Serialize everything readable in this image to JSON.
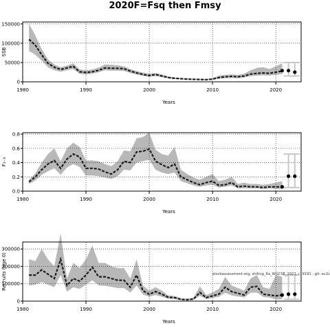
{
  "figure_title": "2020F=Fsq then Fmsy",
  "colors": {
    "band": "#b8b8b8",
    "line": "#1a1a1a",
    "grid": "#222222",
    "forecast_bar": "#c8c8c8"
  },
  "chart_data": [
    {
      "type": "line",
      "ylabel": "SSB",
      "xlabel": "Years",
      "xlim": [
        1980,
        2024
      ],
      "ylim": [
        0,
        155000
      ],
      "xticks": [
        1980,
        1990,
        2000,
        2010,
        2020
      ],
      "yticks": [
        0,
        50000,
        100000,
        150000
      ],
      "grid": true,
      "x": [
        1981,
        1982,
        1983,
        1984,
        1985,
        1986,
        1987,
        1988,
        1989,
        1990,
        1991,
        1992,
        1993,
        1994,
        1995,
        1996,
        1997,
        1998,
        1999,
        2000,
        2001,
        2002,
        2003,
        2004,
        2005,
        2006,
        2007,
        2008,
        2009,
        2010,
        2011,
        2012,
        2013,
        2014,
        2015,
        2016,
        2017,
        2018,
        2019,
        2020,
        2021
      ],
      "series": [
        {
          "role": "median",
          "values": [
            110000,
            95000,
            70000,
            48000,
            38000,
            32000,
            36000,
            40000,
            26000,
            24000,
            26000,
            30000,
            36000,
            35000,
            35000,
            34000,
            28000,
            23000,
            19000,
            16000,
            19000,
            15000,
            11000,
            9000,
            8000,
            7000,
            6500,
            6000,
            5500,
            7000,
            11000,
            13000,
            14000,
            13000,
            15000,
            20000,
            22000,
            23000,
            22000,
            25000,
            28000
          ]
        },
        {
          "role": "upper",
          "values": [
            150000,
            120000,
            85000,
            58000,
            45000,
            38000,
            42000,
            48000,
            32000,
            30000,
            32000,
            37000,
            45000,
            44000,
            43000,
            40000,
            33000,
            28000,
            24000,
            21000,
            23000,
            19000,
            14000,
            11500,
            10000,
            9000,
            8000,
            7500,
            7000,
            9000,
            16000,
            18000,
            19000,
            18000,
            21000,
            30000,
            36000,
            38000,
            33000,
            40000,
            48000
          ]
        },
        {
          "role": "lower",
          "values": [
            80000,
            70000,
            55000,
            38000,
            30000,
            26000,
            30000,
            33000,
            21000,
            19000,
            21000,
            25000,
            30000,
            29000,
            29000,
            28000,
            23000,
            19000,
            15500,
            13000,
            15000,
            12000,
            9000,
            7500,
            6500,
            5800,
            5300,
            5000,
            4500,
            5500,
            8000,
            9500,
            10000,
            9500,
            11000,
            15000,
            16000,
            17000,
            16500,
            18000,
            20000
          ]
        }
      ],
      "forecast": {
        "x": [
          2021,
          2022,
          2023
        ],
        "values": [
          29000,
          29000,
          25000
        ],
        "upper": [
          null,
          50000,
          50000
        ],
        "lower": [
          null,
          15000,
          15000
        ]
      }
    },
    {
      "type": "line",
      "ylabel": "F₁₋₃",
      "xlabel": "Years",
      "xlim": [
        1980,
        2024
      ],
      "ylim": [
        0,
        0.82
      ],
      "xticks": [
        1980,
        1990,
        2000,
        2010,
        2020
      ],
      "yticks": [
        0.0,
        0.2,
        0.4,
        0.6,
        0.8
      ],
      "ytick_labels": [
        "0.0",
        "0.2",
        "0.4",
        "0.6",
        "0.8"
      ],
      "grid": true,
      "x": [
        1981,
        1982,
        1983,
        1984,
        1985,
        1986,
        1987,
        1988,
        1989,
        1990,
        1991,
        1992,
        1993,
        1994,
        1995,
        1996,
        1997,
        1998,
        1999,
        2000,
        2001,
        2002,
        2003,
        2004,
        2005,
        2006,
        2007,
        2008,
        2009,
        2010,
        2011,
        2012,
        2013,
        2014,
        2015,
        2016,
        2017,
        2018,
        2019,
        2020,
        2021
      ],
      "series": [
        {
          "role": "median",
          "values": [
            0.13,
            0.2,
            0.3,
            0.38,
            0.43,
            0.32,
            0.45,
            0.52,
            0.48,
            0.32,
            0.32,
            0.31,
            0.27,
            0.24,
            0.3,
            0.42,
            0.4,
            0.55,
            0.56,
            0.59,
            0.42,
            0.37,
            0.33,
            0.38,
            0.2,
            0.16,
            0.12,
            0.09,
            0.12,
            0.14,
            0.08,
            0.09,
            0.12,
            0.06,
            0.07,
            0.06,
            0.06,
            0.05,
            0.06,
            0.06,
            0.06
          ]
        },
        {
          "role": "upper",
          "values": [
            0.16,
            0.25,
            0.4,
            0.52,
            0.6,
            0.42,
            0.6,
            0.68,
            0.62,
            0.43,
            0.43,
            0.42,
            0.38,
            0.35,
            0.42,
            0.57,
            0.56,
            0.74,
            0.76,
            0.82,
            0.58,
            0.52,
            0.5,
            0.62,
            0.3,
            0.24,
            0.19,
            0.16,
            0.2,
            0.24,
            0.14,
            0.16,
            0.2,
            0.1,
            0.12,
            0.1,
            0.1,
            0.09,
            0.1,
            0.12,
            0.14
          ]
        },
        {
          "role": "lower",
          "values": [
            0.1,
            0.15,
            0.23,
            0.28,
            0.32,
            0.23,
            0.33,
            0.38,
            0.34,
            0.22,
            0.22,
            0.21,
            0.19,
            0.17,
            0.21,
            0.3,
            0.29,
            0.4,
            0.42,
            0.44,
            0.3,
            0.26,
            0.24,
            0.26,
            0.14,
            0.11,
            0.08,
            0.06,
            0.08,
            0.09,
            0.05,
            0.06,
            0.08,
            0.04,
            0.04,
            0.04,
            0.04,
            0.03,
            0.04,
            0.03,
            0.03
          ]
        }
      ],
      "forecast": {
        "x": [
          2021,
          2022,
          2023
        ],
        "values": [
          0.06,
          0.21,
          0.21
        ],
        "upper": [
          null,
          0.52,
          0.52
        ],
        "lower": [
          null,
          0.05,
          0.05
        ]
      }
    },
    {
      "type": "line",
      "ylabel": "Recruits (age 0)",
      "xlabel": "Years",
      "xlim": [
        1980,
        2024
      ],
      "ylim": [
        0,
        340000
      ],
      "xticks": [
        1980,
        1990,
        2000,
        2010,
        2020
      ],
      "yticks": [
        0,
        100000,
        200000,
        300000
      ],
      "grid": true,
      "annotation": "stockassessment.org, shiting_6a_WGCSE_2021, r19191 , git: ec2c",
      "x": [
        1981,
        1982,
        1983,
        1984,
        1985,
        1986,
        1987,
        1988,
        1989,
        1990,
        1991,
        1992,
        1993,
        1994,
        1995,
        1996,
        1997,
        1998,
        1999,
        2000,
        2001,
        2002,
        2003,
        2004,
        2005,
        2006,
        2007,
        2008,
        2009,
        2010,
        2011,
        2012,
        2013,
        2014,
        2015,
        2016,
        2017,
        2018,
        2019,
        2020,
        2021
      ],
      "series": [
        {
          "role": "median",
          "values": [
            150000,
            150000,
            180000,
            155000,
            130000,
            240000,
            90000,
            130000,
            115000,
            150000,
            195000,
            140000,
            140000,
            130000,
            120000,
            120000,
            80000,
            150000,
            60000,
            40000,
            55000,
            40000,
            22000,
            20000,
            10000,
            8000,
            12000,
            50000,
            20000,
            30000,
            40000,
            80000,
            55000,
            45000,
            35000,
            80000,
            85000,
            40000,
            35000,
            30000,
            35000
          ]
        },
        {
          "role": "upper",
          "values": [
            240000,
            230000,
            300000,
            240000,
            200000,
            390000,
            130000,
            220000,
            190000,
            240000,
            320000,
            220000,
            220000,
            200000,
            190000,
            190000,
            130000,
            240000,
            90000,
            60000,
            80000,
            60000,
            33000,
            30000,
            17000,
            14000,
            20000,
            85000,
            35000,
            50000,
            70000,
            140000,
            90000,
            75000,
            60000,
            130000,
            150000,
            80000,
            70000,
            150000,
            140000
          ]
        },
        {
          "role": "lower",
          "values": [
            90000,
            95000,
            110000,
            95000,
            80000,
            150000,
            55000,
            80000,
            70000,
            95000,
            120000,
            90000,
            88000,
            82000,
            75000,
            75000,
            50000,
            90000,
            38000,
            25000,
            35000,
            25000,
            14000,
            12000,
            6000,
            5000,
            7000,
            30000,
            12000,
            18000,
            24000,
            48000,
            33000,
            27000,
            21000,
            48000,
            50000,
            24000,
            20000,
            10000,
            10000
          ]
        }
      ],
      "forecast": {
        "x": [
          2021,
          2022,
          2023
        ],
        "values": [
          35000,
          40000,
          40000
        ],
        "upper": [
          null,
          150000,
          150000
        ],
        "lower": [
          null,
          10000,
          10000
        ]
      }
    }
  ]
}
